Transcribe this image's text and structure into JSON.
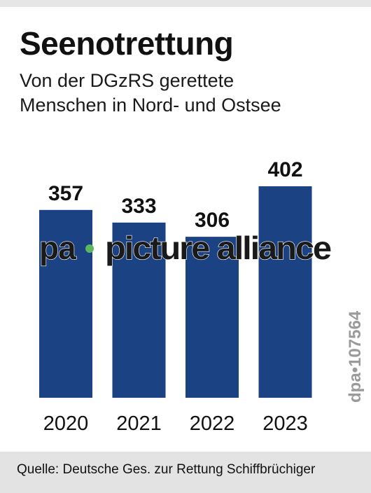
{
  "header": {
    "title": "Seenotrettung",
    "subtitle_line1": "Von der DGzRS gerettete",
    "subtitle_line2": "Menschen in Nord- und Ostsee"
  },
  "chart_data": {
    "type": "bar",
    "title": "Seenotrettung",
    "subtitle": "Von der DGzRS gerettete Menschen in Nord- und Ostsee",
    "categories": [
      "2020",
      "2021",
      "2022",
      "2023"
    ],
    "values": [
      357,
      333,
      306,
      402
    ],
    "xlabel": "",
    "ylabel": "",
    "ylim": [
      0,
      402
    ],
    "grid": false,
    "legend": "none",
    "bar_color": "#1b4283",
    "value_labels": true
  },
  "watermark": {
    "text_left": "pa",
    "text_right": "picture alliance",
    "dot_color": "#5cb85c"
  },
  "credit": "dpa•107564",
  "footer": {
    "source": "Quelle: Deutsche Ges. zur Rettung Schiffbrüchiger"
  },
  "colors": {
    "bar": "#1b4283",
    "footer_bg": "#e3e3e3",
    "credit": "#9a9a9a"
  }
}
